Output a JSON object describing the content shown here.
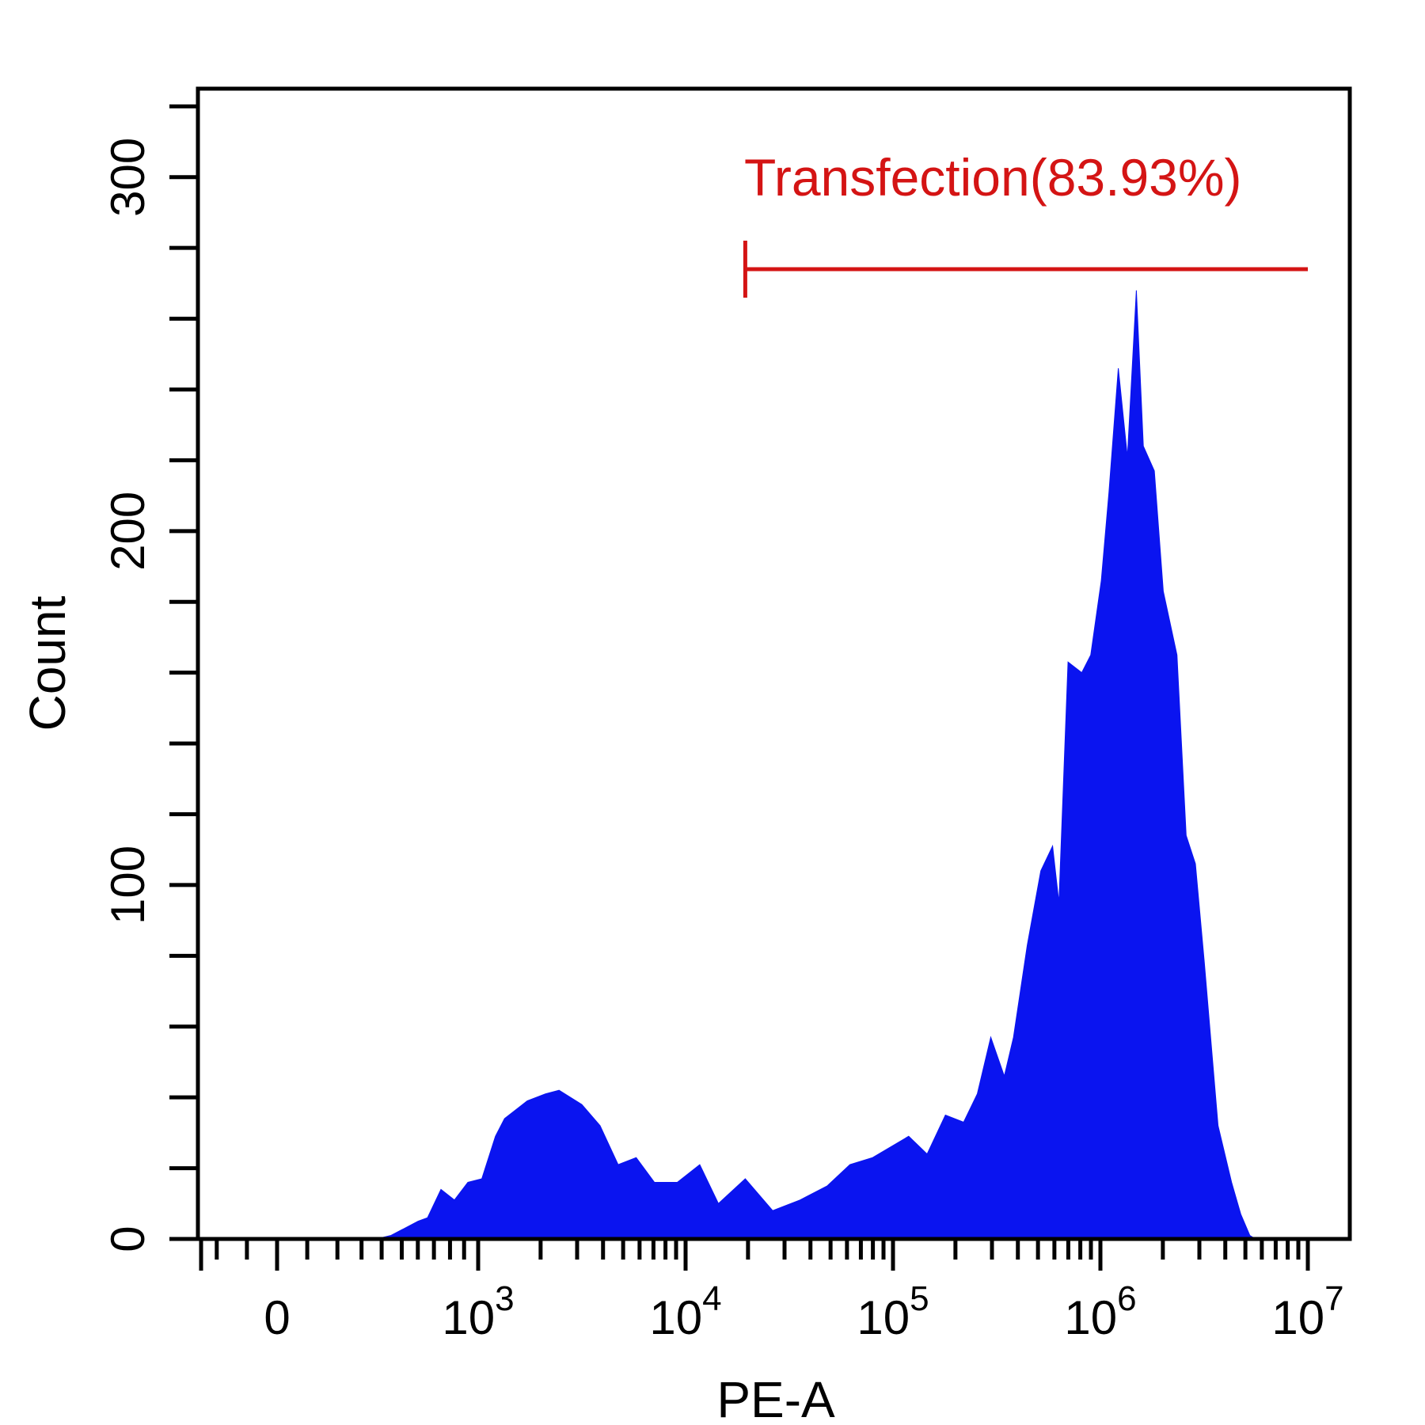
{
  "chart_data": {
    "type": "area",
    "xlabel": "PE-A",
    "ylabel": "Count",
    "x_scale": "biexponential (linear near 0, log above 10^3)",
    "xlim": [
      -400,
      10000000
    ],
    "ylim": [
      0,
      325
    ],
    "x_ticks": [
      {
        "value": 0,
        "label": "0",
        "sup": ""
      },
      {
        "value": 1000,
        "label": "10",
        "sup": "3"
      },
      {
        "value": 10000,
        "label": "10",
        "sup": "4"
      },
      {
        "value": 100000,
        "label": "10",
        "sup": "5"
      },
      {
        "value": 1000000,
        "label": "10",
        "sup": "6"
      },
      {
        "value": 10000000,
        "label": "10",
        "sup": "7"
      }
    ],
    "y_ticks": [
      {
        "value": 0,
        "label": "0"
      },
      {
        "value": 100,
        "label": "100"
      },
      {
        "value": 200,
        "label": "200"
      },
      {
        "value": 300,
        "label": "300"
      }
    ],
    "grid": false,
    "fill_color": "#0a14f0",
    "gate": {
      "label": "Transfection(83.93%)",
      "color": "#d41414",
      "x_start": 19400,
      "x_end": 10000000,
      "count_level": 274
    },
    "series": [
      {
        "x": [
          494,
          567,
          701,
          748,
          815,
          882,
          949,
          1041,
          1211,
          1340,
          1725,
          2110,
          2455,
          3160,
          3870,
          4730,
          5780,
          7080,
          9120,
          11700,
          14400,
          19400,
          26300,
          35600,
          48200,
          62000,
          79800,
          119000,
          146000,
          179000,
          219000,
          255000,
          296000,
          344000,
          381000,
          444000,
          516000,
          588000,
          631000,
          698000,
          813000,
          898000,
          1010000,
          1100000,
          1220000,
          1350000,
          1490000,
          1610000,
          1820000,
          2010000,
          2340000,
          2590000,
          2870000,
          3170000,
          3690000,
          4290000,
          4750000,
          5250000,
          5600000
        ],
        "y": [
          0,
          1,
          5,
          6,
          14,
          11,
          16,
          17,
          29,
          34,
          39,
          41,
          42,
          38,
          32,
          21,
          23,
          16,
          16,
          21,
          10,
          17,
          8,
          11,
          15,
          21,
          23,
          29,
          24,
          35,
          33,
          41,
          57,
          46,
          57,
          83,
          104,
          111,
          95,
          163,
          160,
          165,
          186,
          211,
          246,
          221,
          268,
          224,
          217,
          183,
          165,
          114,
          106,
          78,
          32,
          16,
          7,
          1,
          0
        ]
      }
    ]
  }
}
